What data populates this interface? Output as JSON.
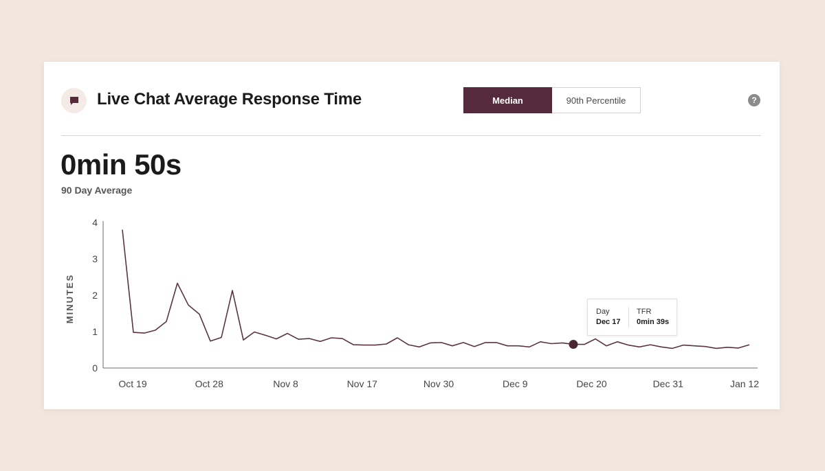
{
  "header": {
    "title": "Live Chat Average Response Time",
    "icon": "chat-bubble-icon",
    "toggle": {
      "options": [
        "Median",
        "90th Percentile"
      ],
      "selected": "Median"
    },
    "help_symbol": "?"
  },
  "summary": {
    "value": "0min 50s",
    "label": "90 Day Average"
  },
  "tooltip": {
    "day_label": "Day",
    "day_value": "Dec 17",
    "metric_label": "TFR",
    "metric_value": "0min 39s"
  },
  "colors": {
    "accent": "#552b3b",
    "line": "#5a3340",
    "background": "#f1e7de"
  },
  "chart_data": {
    "type": "line",
    "ylabel": "MINUTES",
    "ylim": [
      0,
      4
    ],
    "yticks": [
      0,
      1,
      2,
      3,
      4
    ],
    "xticks": [
      "Oct 19",
      "Oct 28",
      "Nov 8",
      "Nov 17",
      "Nov 30",
      "Dec 9",
      "Dec 20",
      "Dec 31",
      "Jan 12"
    ],
    "grid": false,
    "series": [
      {
        "values": [
          3.8,
          0.98,
          0.96,
          1.04,
          1.28,
          2.33,
          1.73,
          1.48,
          0.74,
          0.84,
          2.13,
          0.77,
          0.99,
          0.9,
          0.8,
          0.95,
          0.79,
          0.81,
          0.73,
          0.83,
          0.81,
          0.64,
          0.63,
          0.63,
          0.66,
          0.83,
          0.64,
          0.58,
          0.69,
          0.7,
          0.61,
          0.7,
          0.59,
          0.7,
          0.7,
          0.61,
          0.61,
          0.58,
          0.72,
          0.67,
          0.69,
          0.65,
          0.65,
          0.8,
          0.61,
          0.72,
          0.63,
          0.58,
          0.64,
          0.58,
          0.54,
          0.63,
          0.61,
          0.59,
          0.54,
          0.57,
          0.55,
          0.64
        ],
        "highlight": {
          "label": "Dec 17",
          "value": 0.65
        }
      }
    ]
  }
}
